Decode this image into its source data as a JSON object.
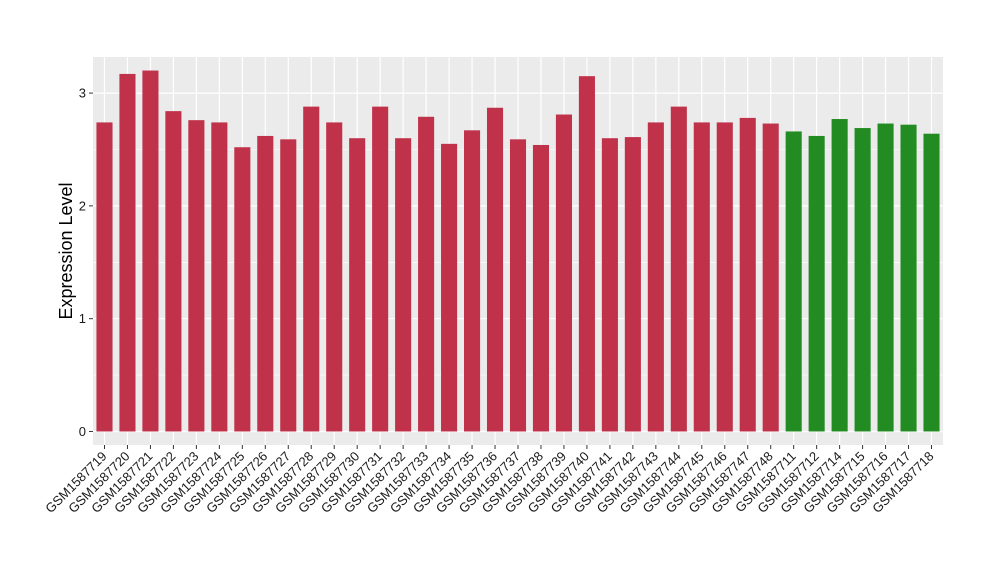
{
  "chart_data": {
    "type": "bar",
    "title": "",
    "xlabel": "",
    "ylabel": "Expression Level",
    "ylim": [
      -0.12,
      3.32
    ],
    "yticks": [
      0,
      1,
      2,
      3
    ],
    "grid": true,
    "legend": "none",
    "panel_background": "#ebebeb",
    "grid_color": "#ffffff",
    "colors": {
      "group_a": "#c0314a",
      "group_b": "#228b22"
    },
    "categories": [
      "GSM1587719",
      "GSM1587720",
      "GSM1587721",
      "GSM1587722",
      "GSM1587723",
      "GSM1587724",
      "GSM1587725",
      "GSM1587726",
      "GSM1587727",
      "GSM1587728",
      "GSM1587729",
      "GSM1587730",
      "GSM1587731",
      "GSM1587732",
      "GSM1587733",
      "GSM1587734",
      "GSM1587735",
      "GSM1587736",
      "GSM1587737",
      "GSM1587738",
      "GSM1587739",
      "GSM1587740",
      "GSM1587741",
      "GSM1587742",
      "GSM1587743",
      "GSM1587744",
      "GSM1587745",
      "GSM1587746",
      "GSM1587747",
      "GSM1587748",
      "GSM1587711",
      "GSM1587712",
      "GSM1587714",
      "GSM1587715",
      "GSM1587716",
      "GSM1587717",
      "GSM1587718"
    ],
    "values": [
      2.74,
      3.17,
      3.2,
      2.84,
      2.76,
      2.74,
      2.52,
      2.62,
      2.59,
      2.88,
      2.74,
      2.6,
      2.88,
      2.6,
      2.79,
      2.55,
      2.67,
      2.87,
      2.59,
      2.54,
      2.81,
      3.15,
      2.6,
      2.61,
      2.74,
      2.88,
      2.74,
      2.74,
      2.78,
      2.73,
      2.66,
      2.62,
      2.77,
      2.69,
      2.73,
      2.72,
      2.64
    ],
    "groups": [
      "group_a",
      "group_a",
      "group_a",
      "group_a",
      "group_a",
      "group_a",
      "group_a",
      "group_a",
      "group_a",
      "group_a",
      "group_a",
      "group_a",
      "group_a",
      "group_a",
      "group_a",
      "group_a",
      "group_a",
      "group_a",
      "group_a",
      "group_a",
      "group_a",
      "group_a",
      "group_a",
      "group_a",
      "group_a",
      "group_a",
      "group_a",
      "group_a",
      "group_a",
      "group_a",
      "group_b",
      "group_b",
      "group_b",
      "group_b",
      "group_b",
      "group_b",
      "group_b"
    ]
  }
}
